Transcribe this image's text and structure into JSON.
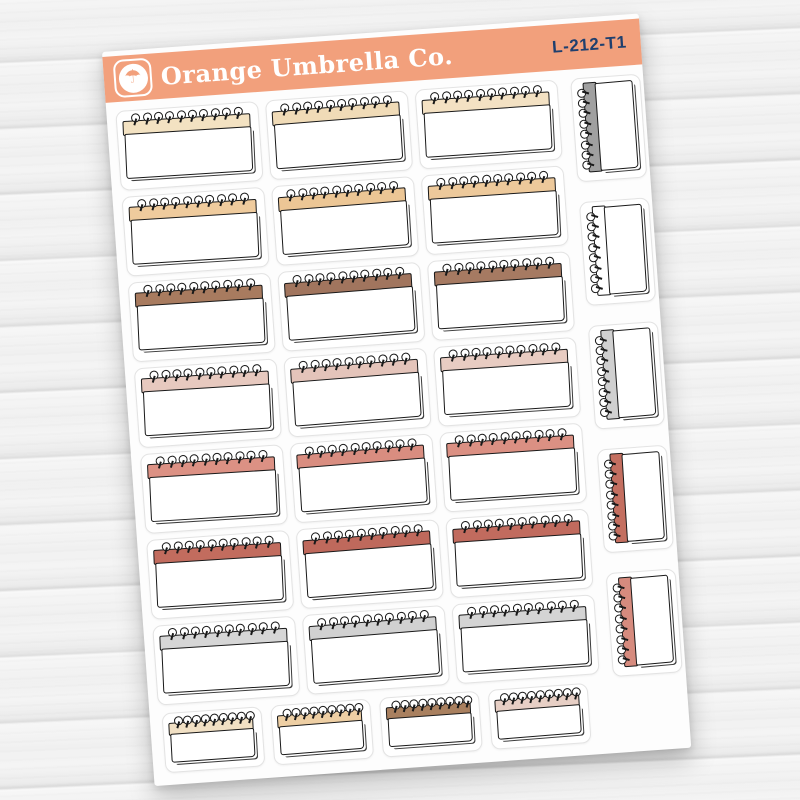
{
  "product_sheet": {
    "brand": "Orange Umbrella Co.",
    "product_code": "L-212-T1",
    "band_color": "#F2A07C",
    "code_text_color": "#1F3F6E",
    "sheet_color": "#FDFDFD",
    "logo_icon": "umbrella-icon"
  },
  "background": {
    "material": "whitewashed-wood-planks",
    "base_color": "#F0F0F0",
    "plank_line_color": "#DDDDDD"
  },
  "stickers": {
    "ink_color": "#191919",
    "page_color": "#FFFFFF",
    "kiss_cut_color": "#E3E3E3",
    "notepad_rows": [
      {
        "row": 1,
        "band_colors": [
          "#F3E2C2",
          "#F0DBB7",
          "#F3E1C3"
        ]
      },
      {
        "row": 2,
        "band_colors": [
          "#EFCB9D",
          "#ECC695",
          "#EDC99B"
        ]
      },
      {
        "row": 3,
        "band_colors": [
          "#A87B5F",
          "#A1755E",
          "#A67A62"
        ]
      },
      {
        "row": 4,
        "band_colors": [
          "#E7C9BF",
          "#E4C4BA",
          "#E8CCC2"
        ]
      },
      {
        "row": 5,
        "band_colors": [
          "#DC9184",
          "#D98D80",
          "#DB9083"
        ]
      },
      {
        "row": 6,
        "band_colors": [
          "#C26C5E",
          "#BF695C",
          "#C16B5E"
        ]
      },
      {
        "row": 7,
        "band_colors": [
          "#D6D6D6",
          "#D1D1D1",
          "#D4D4D4"
        ]
      }
    ],
    "bottom_row_band_colors": [
      "#F1E0C4",
      "#EECFA4",
      "#A9805F",
      "#E7CFC5"
    ],
    "side_column_binding_colors": [
      "#A0A0A0",
      "#FFFFFF",
      "#D0D0D0",
      "#C46F60",
      "#D68B7E"
    ]
  }
}
